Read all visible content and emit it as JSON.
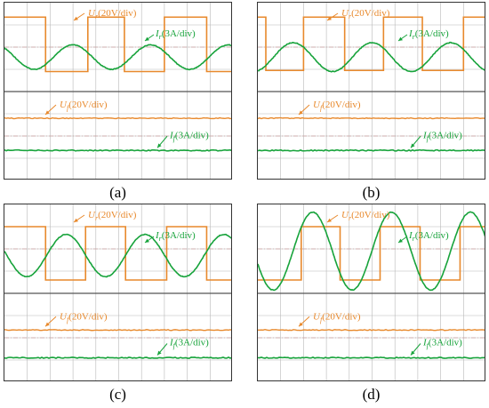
{
  "colors": {
    "voltage": "#e8892c",
    "current": "#17a33b",
    "grid": "#b8b8b8",
    "divider": "#555555",
    "axis": "#c9a0a0"
  },
  "chart_data": [
    {
      "type": "line",
      "caption": "(a)",
      "upper": {
        "voltage_label": {
          "symbol": "U",
          "sub": "r",
          "text": "(20V/div)"
        },
        "current_label": {
          "symbol": "I",
          "sub": "r",
          "text": "(3A/div)"
        },
        "voltage_high_div": 1.35,
        "voltage_low_div": -1.1,
        "voltage_edges_div": [
          1.8,
          3.65,
          5.25,
          7.0,
          8.85
        ],
        "voltage_start_high": true,
        "current_amplitude_div": 0.55,
        "current_period_div": 3.4,
        "current_peak_div": 3.0,
        "current_offset_div": -0.45
      },
      "lower": {
        "voltage_label": {
          "symbol": "U",
          "sub": "f",
          "text": "(20V/div)"
        },
        "current_label": {
          "symbol": "I",
          "sub": "f",
          "text": "(3A/div)"
        },
        "voltage_level_div": 0.8,
        "current_level_div": -0.65
      }
    },
    {
      "type": "line",
      "caption": "(b)",
      "upper": {
        "voltage_label": {
          "symbol": "U",
          "sub": "r",
          "text": "(20V/div)"
        },
        "current_label": {
          "symbol": "I",
          "sub": "r",
          "text": "(3A/div)"
        },
        "voltage_high_div": 1.35,
        "voltage_low_div": -1.05,
        "voltage_edges_div": [
          0.35,
          2.0,
          3.8,
          5.5,
          7.2,
          9.0
        ],
        "voltage_start_high": true,
        "current_amplitude_div": 0.65,
        "current_period_div": 3.45,
        "current_peak_div": 1.55,
        "current_offset_div": -0.45
      },
      "lower": {
        "voltage_label": {
          "symbol": "U",
          "sub": "f",
          "text": "(20V/div)"
        },
        "current_label": {
          "symbol": "I",
          "sub": "f",
          "text": "(3A/div)"
        },
        "voltage_level_div": 0.8,
        "current_level_div": -0.65
      }
    },
    {
      "type": "line",
      "caption": "(c)",
      "upper": {
        "voltage_label": {
          "symbol": "U",
          "sub": "r",
          "text": "(20V/div)"
        },
        "current_label": {
          "symbol": "I",
          "sub": "r",
          "text": "(3A/div)"
        },
        "voltage_high_div": 1.0,
        "voltage_low_div": -1.4,
        "voltage_edges_div": [
          1.8,
          3.55,
          5.3,
          7.1,
          8.85
        ],
        "voltage_start_high": true,
        "current_amplitude_div": 0.95,
        "current_period_div": 3.45,
        "current_peak_div": 2.7,
        "current_offset_div": -0.3
      },
      "lower": {
        "voltage_label": {
          "symbol": "U",
          "sub": "f",
          "text": "(20V/div)"
        },
        "current_label": {
          "symbol": "I",
          "sub": "f",
          "text": "(3A/div)"
        },
        "voltage_level_div": 0.35,
        "current_level_div": -0.9
      }
    },
    {
      "type": "line",
      "caption": "(d)",
      "upper": {
        "voltage_label": {
          "symbol": "U",
          "sub": "r",
          "text": "(20V/div)"
        },
        "current_label": {
          "symbol": "I",
          "sub": "r",
          "text": "(3A/div)"
        },
        "voltage_high_div": 1.0,
        "voltage_low_div": -1.4,
        "voltage_edges_div": [
          1.9,
          3.6,
          5.35,
          7.1,
          8.85
        ],
        "voltage_start_high": false,
        "current_amplitude_div": 1.75,
        "current_period_div": 3.45,
        "current_peak_div": 2.4,
        "current_offset_div": -0.1
      },
      "lower": {
        "voltage_label": {
          "symbol": "U",
          "sub": "f",
          "text": "(20V/div)"
        },
        "current_label": {
          "symbol": "I",
          "sub": "f",
          "text": "(3A/div)"
        },
        "voltage_level_div": 0.35,
        "current_level_div": -0.9
      }
    }
  ]
}
